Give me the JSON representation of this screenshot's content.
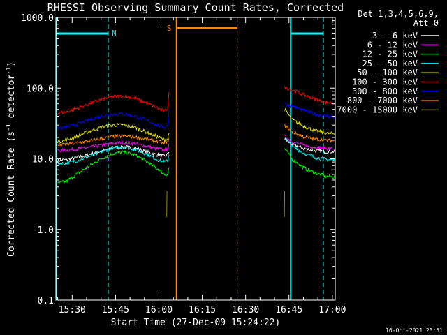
{
  "chart_data": {
    "type": "line",
    "title": "RHESSI Observing Summary Count Rates, Corrected",
    "xlabel": "Start Time (27-Dec-09 15:24:22)",
    "ylabel_main": "Corrected Count Rate (s",
    "ylabel_sup1": "-1",
    "ylabel_mid": " detector",
    "ylabel_sup2": "-1",
    "ylabel_end": ")",
    "yscale": "log",
    "ylim": [
      0.1,
      1000
    ],
    "xlim_minutes": [
      924.37,
      1021
    ],
    "x_ticks": [
      {
        "label": "15:30",
        "minute": 930
      },
      {
        "label": "15:45",
        "minute": 945
      },
      {
        "label": "16:00",
        "minute": 960
      },
      {
        "label": "16:15",
        "minute": 975
      },
      {
        "label": "16:30",
        "minute": 990
      },
      {
        "label": "16:45",
        "minute": 1005
      },
      {
        "label": "17:00",
        "minute": 1020
      }
    ],
    "y_ticks": [
      {
        "label": "0.1",
        "value": 0.1
      },
      {
        "label": "1.0",
        "value": 1
      },
      {
        "label": "10.0",
        "value": 10
      },
      {
        "label": "100.0",
        "value": 100
      },
      {
        "label": "1000.0",
        "value": 1000
      }
    ],
    "legend": {
      "placement": "right",
      "header_line1": "Det 1,3,4,5,6,9,",
      "header_line2": "Att 0",
      "entries": [
        {
          "label": "3 - 6 keV",
          "color": "#ffffff"
        },
        {
          "label": "6 - 12 keV",
          "color": "#ff00ff"
        },
        {
          "label": "12 - 25 keV",
          "color": "#00ff00"
        },
        {
          "label": "25 - 50 keV",
          "color": "#00ffff"
        },
        {
          "label": "50 - 100 keV",
          "color": "#e0e000"
        },
        {
          "label": "100 - 300 keV",
          "color": "#ff0000"
        },
        {
          "label": "300 - 800 keV",
          "color": "#0000ff"
        },
        {
          "label": "800 - 7000 keV",
          "color": "#ff8800"
        },
        {
          "label": "7000 - 15000 keV",
          "color": "#909000"
        }
      ]
    },
    "night_marker": {
      "label": "N",
      "color": "#00ffff",
      "night_start_minute": 942.5,
      "night_end_minute": 1005.6
    },
    "saa_marker": {
      "label": "S",
      "color": "#ff8800",
      "saa_start_minute": 966.1,
      "saa_end_minute": 987.1
    },
    "series": [
      {
        "name": "3 - 6 keV",
        "color": "#ffffff",
        "x": [
          925,
          928,
          932,
          936,
          940,
          944,
          948,
          952,
          956,
          960,
          962,
          963,
          963.6,
          1003.5,
          1006,
          1010,
          1014,
          1018,
          1021
        ],
        "y": [
          9.5,
          9.7,
          10.5,
          11.5,
          12.8,
          14,
          14.8,
          14,
          12.5,
          11.2,
          10.8,
          11.5,
          13,
          19,
          16,
          14,
          13,
          12.6,
          12.6
        ]
      },
      {
        "name": "6 - 12 keV",
        "color": "#ff00ff",
        "x": [
          925,
          928,
          932,
          936,
          940,
          944,
          948,
          952,
          956,
          960,
          962,
          963,
          963.6,
          1003.5,
          1006,
          1010,
          1014,
          1018,
          1021
        ],
        "y": [
          13,
          13.2,
          13.8,
          14.5,
          15.5,
          16.5,
          17,
          16.3,
          15,
          13.8,
          13.3,
          14,
          16,
          21,
          17.5,
          15.5,
          14.5,
          14,
          13.8
        ]
      },
      {
        "name": "12 - 25 keV",
        "color": "#00ff00",
        "x": [
          925,
          928,
          932,
          936,
          940,
          944,
          948,
          952,
          956,
          960,
          962,
          963,
          963.6,
          1003.5,
          1006,
          1010,
          1014,
          1018,
          1021
        ],
        "y": [
          4.5,
          4.8,
          6.2,
          8,
          10,
          11.8,
          12.5,
          11.2,
          9,
          7,
          6,
          6,
          8,
          14,
          10,
          7.5,
          6.3,
          5.6,
          5.5
        ]
      },
      {
        "name": "25 - 50 keV",
        "color": "#00ffff",
        "x": [
          925,
          928,
          932,
          936,
          940,
          944,
          948,
          952,
          956,
          960,
          962,
          963,
          963.6,
          1003.5,
          1006,
          1010,
          1014,
          1018,
          1021
        ],
        "y": [
          8.5,
          8.7,
          9.5,
          10.8,
          12.5,
          14.2,
          14.8,
          13.5,
          11.5,
          9.5,
          9,
          9.5,
          12,
          20,
          15,
          12,
          10.5,
          9.8,
          9.5
        ]
      },
      {
        "name": "50 - 100 keV",
        "color": "#e0e000",
        "x": [
          925,
          928,
          932,
          936,
          940,
          944,
          948,
          952,
          956,
          960,
          962,
          963,
          963.6,
          1003.5,
          1006,
          1010,
          1014,
          1018,
          1021
        ],
        "y": [
          17.5,
          18.5,
          21,
          24.5,
          28,
          30,
          30,
          27.5,
          23.5,
          20,
          18.5,
          19,
          24,
          50,
          36,
          29,
          25,
          23,
          22.5
        ]
      },
      {
        "name": "100 - 300 keV",
        "color": "#ff0000",
        "x": [
          925,
          928,
          932,
          936,
          940,
          944,
          948,
          952,
          956,
          960,
          962,
          963,
          963.6,
          1003.5,
          1006,
          1010,
          1014,
          1018,
          1021
        ],
        "y": [
          44,
          46,
          52,
          60,
          69,
          76,
          77,
          71,
          61,
          51,
          47,
          52,
          95,
          102,
          95,
          80,
          70,
          63,
          61
        ]
      },
      {
        "name": "300 - 800 keV",
        "color": "#0000ff",
        "x": [
          925,
          928,
          932,
          936,
          940,
          944,
          948,
          952,
          956,
          960,
          962,
          963,
          963.6,
          1003.5,
          1006,
          1010,
          1014,
          1018,
          1021
        ],
        "y": [
          27,
          28,
          31,
          35.5,
          40,
          43,
          43,
          39.5,
          34.5,
          29.5,
          27.5,
          30,
          55,
          60,
          56,
          48,
          43,
          40,
          38.5
        ]
      },
      {
        "name": "800 - 7000 keV",
        "color": "#ff8800",
        "x": [
          925,
          928,
          932,
          936,
          940,
          944,
          948,
          952,
          956,
          960,
          962,
          963,
          963.6,
          1003.5,
          1006,
          1010,
          1014,
          1018,
          1021
        ],
        "y": [
          15.5,
          16,
          16.8,
          17.8,
          19.2,
          20.5,
          21,
          20.2,
          18.8,
          17.3,
          16.5,
          17,
          19,
          30,
          24,
          20.5,
          19,
          18.2,
          18
        ]
      },
      {
        "name": "7000 - 15000 keV",
        "color": "#909000",
        "x": [
          962.7,
          962.8,
          1003.4,
          1003.5
        ],
        "y": [
          1.5,
          3.5,
          1.5,
          3.5
        ]
      }
    ]
  },
  "footer": {
    "timestamp": "16-Oct-2021 23:51"
  }
}
